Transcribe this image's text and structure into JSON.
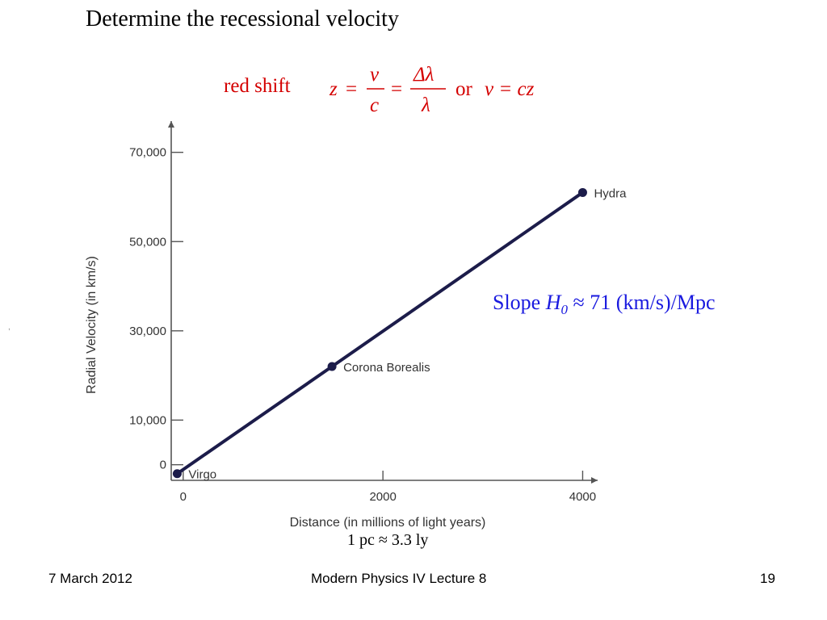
{
  "slide": {
    "title": "Determine the recessional velocity",
    "redshift_label": "red shift",
    "formula": {
      "z": "z",
      "eq": "=",
      "v": "v",
      "c": "c",
      "dlambda": "Δλ",
      "lambda": "λ",
      "or": "or",
      "v_eq_cz": "v = cz"
    },
    "slope": {
      "prefix": "Slope",
      "symbol": "H",
      "subscript": "0",
      "value": "≈ 71 (km/s)/Mpc"
    },
    "pc_note": "1 pc ≈ 3.3 ly",
    "stray_mark": ","
  },
  "footer": {
    "date": "7 March 2012",
    "title": "Modern Physics IV Lecture 8",
    "page": "19"
  },
  "chart_data": {
    "type": "line",
    "xlabel": "Distance (in millions of light years)",
    "ylabel": "Radial Velocity (in km/s)",
    "xlim": [
      -120,
      4150
    ],
    "ylim": [
      -3500,
      77000
    ],
    "x_ticks": [
      0,
      2000,
      4000
    ],
    "x_tick_labels": [
      "0",
      "2000",
      "4000"
    ],
    "y_ticks": [
      0,
      10000,
      30000,
      50000,
      70000
    ],
    "y_tick_labels": [
      "0",
      "10,000",
      "30,000",
      "50,000",
      "70,000"
    ],
    "grid": false,
    "points": [
      {
        "label": "Virgo",
        "x": -60,
        "y": -2000
      },
      {
        "label": "Corona Borealis",
        "x": 1490,
        "y": 22000
      },
      {
        "label": "Hydra",
        "x": 4000,
        "y": 61000
      }
    ],
    "colors": {
      "line": "#1c1c4a",
      "axis": "#555555",
      "text": "#333333"
    }
  }
}
